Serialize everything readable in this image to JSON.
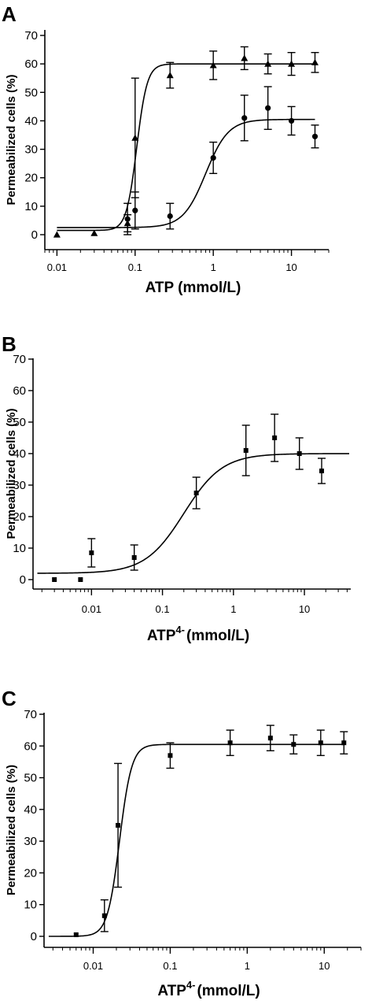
{
  "chart_data": [
    {
      "type": "scatter",
      "panel_label": "A",
      "ylabel": "Permeabilized cells (%)",
      "xlabel": "ATP (mmol/L)",
      "xlabel_sup": "",
      "xlabel_unit": "",
      "xscale": "log",
      "xlim": [
        0.007,
        30
      ],
      "ylim": [
        -5,
        72
      ],
      "yticks": [
        0,
        10,
        20,
        30,
        40,
        50,
        60,
        70
      ],
      "xticks": [
        0.01,
        0.1,
        1,
        10
      ],
      "xtick_labels": [
        "0.01",
        "0.1",
        "1",
        "10"
      ],
      "xminor": true,
      "series": [
        {
          "marker": "triangle",
          "x": [
            0.01,
            0.03,
            0.08,
            0.1,
            0.28,
            1,
            2.5,
            5,
            10,
            20
          ],
          "y": [
            0,
            0.5,
            4,
            34,
            56,
            59.5,
            62,
            60,
            60,
            60.5
          ],
          "err": [
            0,
            0,
            3,
            21,
            4.5,
            5,
            4,
            3.5,
            4,
            3.5
          ],
          "fit": {
            "bottom": 1.5,
            "top": 60,
            "ec50": 0.105,
            "hill": 6.5
          }
        },
        {
          "marker": "circle",
          "x": [
            0.08,
            0.1,
            0.28,
            1,
            2.5,
            5,
            10,
            20
          ],
          "y": [
            5.5,
            8.5,
            6.5,
            27,
            41,
            44.5,
            40,
            34.5
          ],
          "err": [
            5.5,
            6.5,
            4.5,
            5.5,
            8,
            7.5,
            5,
            4
          ],
          "fit": {
            "bottom": 2.5,
            "top": 40.5,
            "ec50": 0.8,
            "hill": 3.0
          }
        }
      ]
    },
    {
      "type": "scatter",
      "panel_label": "B",
      "ylabel": "Permeabilized cells (%)",
      "xlabel": "ATP",
      "xlabel_sup": "4-",
      "xlabel_unit": "(mmol/L)",
      "xscale": "log",
      "xlim": [
        0.0015,
        45
      ],
      "ylim": [
        -3,
        70
      ],
      "yticks": [
        0,
        10,
        20,
        30,
        40,
        50,
        60,
        70
      ],
      "xticks": [
        0.01,
        0.1,
        1,
        10
      ],
      "xtick_labels": [
        "0.01",
        "0.1",
        "1",
        "10"
      ],
      "xminor": true,
      "series": [
        {
          "marker": "square",
          "x": [
            0.003,
            0.007,
            0.01,
            0.04,
            0.3,
            1.5,
            3.8,
            8.5,
            17.5
          ],
          "y": [
            0,
            0,
            8.5,
            7,
            27.5,
            41,
            45,
            40,
            34.5
          ],
          "err": [
            0,
            0,
            4.5,
            4,
            5,
            8,
            7.5,
            5,
            4
          ],
          "fit": {
            "bottom": 2,
            "top": 40,
            "ec50": 0.2,
            "hill": 1.6
          }
        }
      ]
    },
    {
      "type": "scatter",
      "panel_label": "C",
      "ylabel": "Permeabilized cells (%)",
      "xlabel": "ATP",
      "xlabel_sup": "4-",
      "xlabel_unit": "(mmol/L)",
      "xscale": "log",
      "xlim": [
        0.0023,
        30
      ],
      "ylim": [
        -3,
        70
      ],
      "yticks": [
        0,
        10,
        20,
        30,
        40,
        50,
        60,
        70
      ],
      "xticks": [
        0.01,
        0.1,
        1,
        10
      ],
      "xtick_labels": [
        "0.01",
        "0.1",
        "1",
        "10"
      ],
      "xminor": true,
      "series": [
        {
          "marker": "square",
          "x": [
            0.006,
            0.014,
            0.021,
            0.1,
            0.6,
            2,
            4,
            9,
            18
          ],
          "y": [
            0.5,
            6.5,
            35,
            57,
            61,
            62.5,
            60.5,
            61,
            61
          ],
          "err": [
            0,
            5,
            19.5,
            4,
            4,
            4,
            3,
            4,
            3.5
          ],
          "fit": {
            "bottom": 0,
            "top": 60.5,
            "ec50": 0.022,
            "hill": 5.5
          }
        }
      ]
    }
  ]
}
